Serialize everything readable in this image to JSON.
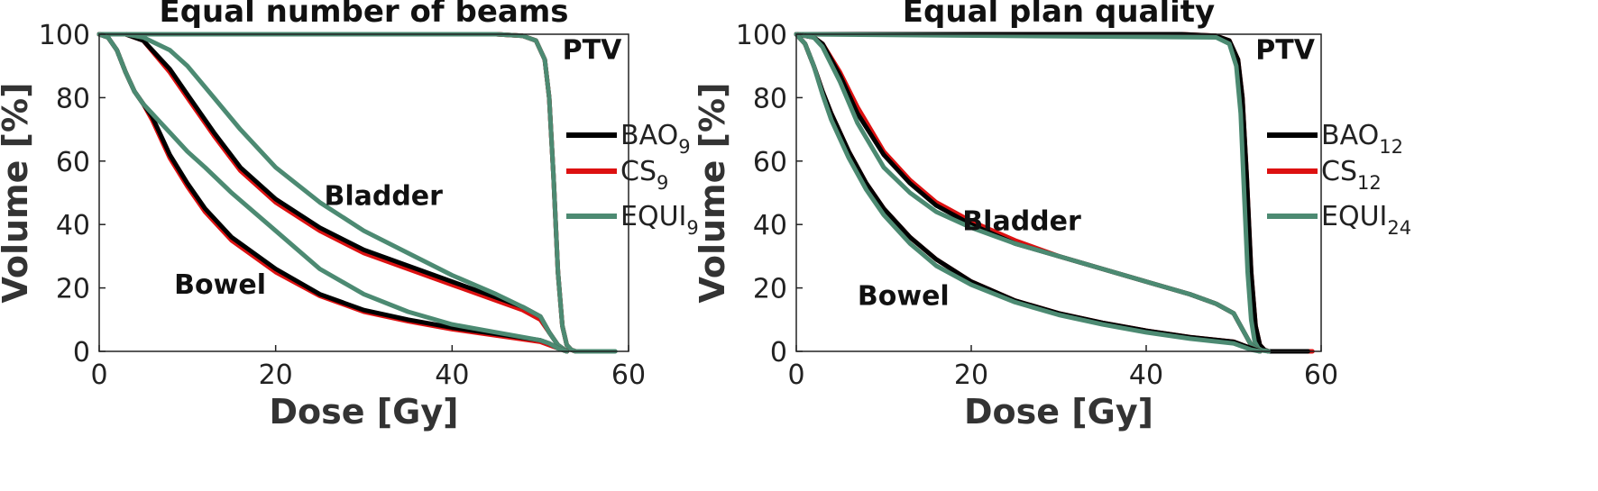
{
  "colors": {
    "BAO": "#000000",
    "CS": "#dd1111",
    "EQUI": "#4c8a72"
  },
  "chart_data": [
    {
      "type": "line",
      "title": "Equal number of beams",
      "xlabel": "Dose [Gy]",
      "ylabel": "Volume [%]",
      "xlim": [
        0,
        60
      ],
      "ylim": [
        0,
        100
      ],
      "xticks": [
        "0",
        "20",
        "40",
        "60"
      ],
      "yticks": [
        "0",
        "20",
        "40",
        "60",
        "80",
        "100"
      ],
      "legend": [
        {
          "base": "BAO",
          "sub": "9",
          "color": "#000000"
        },
        {
          "base": "CS",
          "sub": "9",
          "color": "#dd1111"
        },
        {
          "base": "EQUI",
          "sub": "9",
          "color": "#4c8a72"
        }
      ],
      "annotations": [
        {
          "text": "PTV",
          "x": 52.5,
          "y": 95
        },
        {
          "text": "Bladder",
          "x": 25.5,
          "y": 49
        },
        {
          "text": "Bowel",
          "x": 8.5,
          "y": 21
        }
      ],
      "series": [
        {
          "name": "PTV BAO9",
          "color": "#000000",
          "x": [
            0,
            45,
            48,
            49.5,
            50.5,
            51,
            51.5,
            52,
            52.5,
            53,
            53.5,
            54,
            58
          ],
          "y": [
            100,
            100,
            99.5,
            98,
            92,
            80,
            55,
            25,
            8,
            2,
            0.5,
            0,
            0
          ]
        },
        {
          "name": "PTV CS9",
          "color": "#dd1111",
          "x": [
            0,
            45,
            48,
            49.5,
            50.5,
            51,
            51.5,
            52,
            52.5,
            53,
            53.5,
            54,
            58
          ],
          "y": [
            100,
            100,
            99.5,
            98,
            92,
            80,
            55,
            25,
            8,
            2,
            0.5,
            0,
            0
          ]
        },
        {
          "name": "PTV EQUI9",
          "color": "#4c8a72",
          "x": [
            0,
            45,
            48,
            49.5,
            50.5,
            51,
            51.5,
            52,
            52.5,
            53,
            53.5,
            54,
            58.5
          ],
          "y": [
            100,
            100,
            99.5,
            98,
            92,
            80,
            55,
            25,
            8,
            2,
            0.5,
            0,
            0
          ]
        },
        {
          "name": "Bladder CS9",
          "color": "#dd1111",
          "x": [
            0,
            3,
            5,
            8,
            10,
            13,
            16,
            20,
            25,
            30,
            35,
            40,
            45,
            48,
            50,
            51,
            52,
            53
          ],
          "y": [
            100,
            100,
            98,
            88,
            80,
            68,
            57,
            47,
            38,
            31,
            26,
            21,
            16,
            13,
            10,
            6,
            2,
            0
          ]
        },
        {
          "name": "Bladder BAO9",
          "color": "#000000",
          "x": [
            0,
            3,
            5,
            8,
            10,
            13,
            16,
            20,
            25,
            30,
            35,
            40,
            45,
            48,
            50,
            51,
            52,
            53
          ],
          "y": [
            100,
            100,
            98,
            89,
            81,
            69,
            58,
            48,
            39,
            32,
            27,
            22,
            17,
            14,
            11,
            6,
            2,
            0
          ]
        },
        {
          "name": "Bladder EQUI9",
          "color": "#4c8a72",
          "x": [
            0,
            3,
            5,
            8,
            10,
            13,
            16,
            20,
            25,
            30,
            35,
            40,
            45,
            48,
            50,
            51,
            52,
            53
          ],
          "y": [
            100,
            100,
            99,
            95,
            90,
            80,
            70,
            58,
            47,
            38,
            31,
            24,
            18,
            14,
            11,
            6,
            2,
            0
          ]
        },
        {
          "name": "Bowel CS9",
          "color": "#dd1111",
          "x": [
            0,
            1,
            2,
            3,
            4,
            5,
            6,
            7,
            8,
            10,
            12,
            15,
            20,
            25,
            30,
            35,
            40,
            45,
            50,
            51,
            52,
            53
          ],
          "y": [
            100,
            99,
            95,
            88,
            82,
            78,
            73,
            67,
            61,
            52,
            44,
            35,
            25,
            17.5,
            12.5,
            9.5,
            7,
            5,
            3,
            2,
            1,
            0
          ]
        },
        {
          "name": "Bowel BAO9",
          "color": "#000000",
          "x": [
            0,
            1,
            2,
            3,
            4,
            5,
            6,
            7,
            8,
            10,
            12,
            15,
            20,
            25,
            30,
            35,
            40,
            45,
            50,
            51,
            52,
            53
          ],
          "y": [
            100,
            99,
            95,
            88,
            82,
            78,
            74,
            68,
            62,
            53,
            45,
            36,
            26,
            18,
            13,
            10,
            7.5,
            5.5,
            3.5,
            2.5,
            1,
            0
          ]
        },
        {
          "name": "Bowel EQUI9",
          "color": "#4c8a72",
          "x": [
            0,
            1,
            2,
            3,
            4,
            5,
            6,
            7,
            8,
            10,
            12,
            15,
            20,
            25,
            30,
            35,
            40,
            45,
            50,
            51,
            52,
            53
          ],
          "y": [
            100,
            99,
            95,
            88,
            82,
            78,
            75,
            72,
            69,
            63,
            58,
            50,
            38,
            26,
            18,
            12.5,
            8.5,
            6,
            3.5,
            2.5,
            1,
            0
          ]
        }
      ]
    },
    {
      "type": "line",
      "title": "Equal plan quality",
      "xlabel": "Dose [Gy]",
      "ylabel": "Volume [%]",
      "xlim": [
        0,
        60
      ],
      "ylim": [
        0,
        100
      ],
      "xticks": [
        "0",
        "20",
        "40",
        "60"
      ],
      "yticks": [
        "0",
        "20",
        "40",
        "60",
        "80",
        "100"
      ],
      "legend": [
        {
          "base": "BAO",
          "sub": "12",
          "color": "#000000"
        },
        {
          "base": "CS",
          "sub": "12",
          "color": "#dd1111"
        },
        {
          "base": "EQUI",
          "sub": "24",
          "color": "#4c8a72"
        }
      ],
      "annotations": [
        {
          "text": "PTV",
          "x": 52.5,
          "y": 95
        },
        {
          "text": "Bladder",
          "x": 19,
          "y": 41
        },
        {
          "text": "Bowel",
          "x": 7,
          "y": 17.5
        }
      ],
      "series": [
        {
          "name": "PTV CS12",
          "color": "#dd1111",
          "x": [
            0,
            44,
            48,
            49.5,
            50.5,
            51,
            51.5,
            52,
            52.5,
            53,
            53.5,
            54,
            59
          ],
          "y": [
            100,
            100,
            99.5,
            98,
            92,
            80,
            55,
            25,
            8,
            2,
            0.5,
            0,
            0
          ]
        },
        {
          "name": "PTV BAO12",
          "color": "#000000",
          "x": [
            0,
            44,
            48,
            49.5,
            50.5,
            51,
            51.5,
            52,
            52.5,
            53,
            53.5,
            54,
            58.5
          ],
          "y": [
            100,
            100,
            99.5,
            98,
            92,
            80,
            55,
            25,
            8,
            2,
            0.5,
            0,
            0
          ]
        },
        {
          "name": "PTV EQUI24",
          "color": "#4c8a72",
          "x": [
            0,
            48,
            49.5,
            50.3,
            50.8,
            51.2,
            51.6,
            52,
            52.4,
            52.8,
            53.2,
            54
          ],
          "y": [
            100,
            99,
            97,
            90,
            75,
            50,
            25,
            10,
            3,
            1,
            0.3,
            0
          ]
        },
        {
          "name": "Bladder CS12",
          "color": "#dd1111",
          "x": [
            0,
            2,
            3,
            5,
            7,
            10,
            13,
            16,
            20,
            25,
            30,
            35,
            40,
            45,
            48,
            50,
            51,
            52,
            53
          ],
          "y": [
            100,
            99,
            97,
            88,
            77,
            63,
            54,
            47,
            41,
            35,
            30,
            26,
            22,
            18,
            15,
            12,
            7,
            2,
            0
          ]
        },
        {
          "name": "Bladder BAO12",
          "color": "#000000",
          "x": [
            0,
            2,
            3,
            5,
            7,
            10,
            13,
            16,
            20,
            25,
            30,
            35,
            40,
            45,
            48,
            50,
            51,
            52,
            53
          ],
          "y": [
            100,
            99,
            97,
            87,
            75,
            62,
            53,
            46,
            40,
            34,
            30,
            26,
            22,
            18,
            15,
            12,
            7,
            2,
            0
          ]
        },
        {
          "name": "Bladder EQUI24",
          "color": "#4c8a72",
          "x": [
            0,
            2,
            3,
            5,
            7,
            10,
            13,
            16,
            20,
            25,
            30,
            35,
            40,
            45,
            48,
            50,
            51,
            52,
            53
          ],
          "y": [
            100,
            99,
            96,
            85,
            72,
            58,
            50,
            44,
            39,
            34,
            30,
            26,
            22,
            18,
            15,
            12,
            7,
            2,
            0
          ]
        },
        {
          "name": "Bowel CS12",
          "color": "#dd1111",
          "x": [
            0,
            1,
            2,
            3,
            4,
            5,
            6,
            8,
            10,
            13,
            16,
            20,
            25,
            30,
            35,
            40,
            45,
            50,
            51,
            52,
            53
          ],
          "y": [
            100,
            97,
            90,
            82,
            75,
            69,
            63,
            53,
            45,
            36,
            29,
            22,
            16,
            12,
            9,
            6.5,
            4.5,
            3,
            2,
            1,
            0
          ]
        },
        {
          "name": "Bowel BAO12",
          "color": "#000000",
          "x": [
            0,
            1,
            2,
            3,
            4,
            5,
            6,
            8,
            10,
            13,
            16,
            20,
            25,
            30,
            35,
            40,
            45,
            50,
            51,
            52,
            53
          ],
          "y": [
            100,
            97,
            90,
            82,
            75,
            69,
            63,
            53,
            45,
            36,
            29,
            22,
            16,
            12,
            9,
            6.5,
            4.5,
            3,
            2,
            1,
            0
          ]
        },
        {
          "name": "Bowel EQUI24",
          "color": "#4c8a72",
          "x": [
            0,
            1,
            2,
            3,
            4,
            5,
            6,
            8,
            10,
            13,
            16,
            20,
            25,
            30,
            35,
            40,
            45,
            50,
            51,
            52,
            53
          ],
          "y": [
            100,
            97,
            90,
            81,
            73,
            67,
            61,
            51,
            43,
            34,
            27,
            21,
            15.5,
            11.5,
            8.5,
            6,
            4,
            2.5,
            1.5,
            0.5,
            0
          ]
        }
      ]
    }
  ]
}
